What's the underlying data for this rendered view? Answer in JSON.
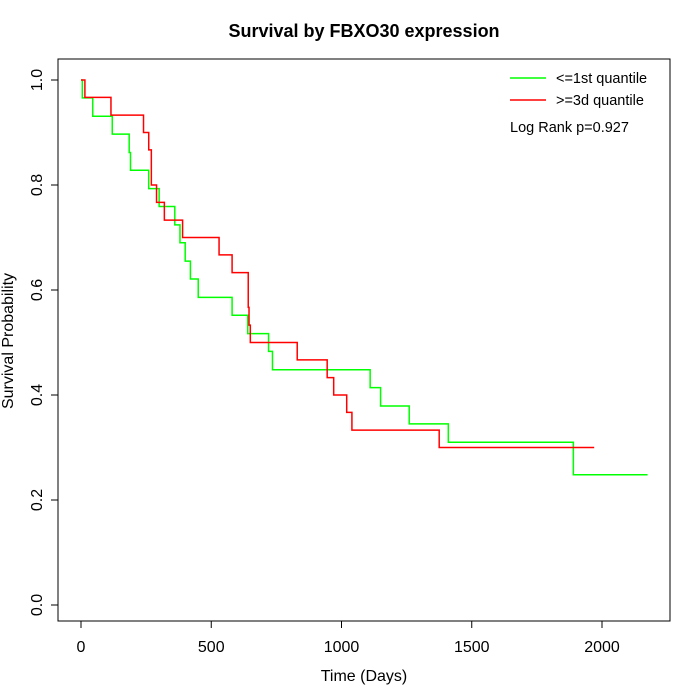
{
  "chart_data": {
    "type": "line",
    "title": "Survival by FBXO30 expression",
    "xlabel": "Time (Days)",
    "ylabel": "Survival Probability",
    "xlim": [
      0,
      2175
    ],
    "ylim": [
      0,
      1.0
    ],
    "x_ticks": [
      0,
      500,
      1000,
      1500,
      2000
    ],
    "y_ticks": [
      0.0,
      0.2,
      0.4,
      0.6,
      0.8,
      1.0
    ],
    "x_tick_labels": [
      "0",
      "500",
      "1000",
      "1500",
      "2000"
    ],
    "y_tick_labels": [
      "0.0",
      "0.2",
      "0.4",
      "0.6",
      "0.8",
      "1.0"
    ],
    "grid": false,
    "legend_position": "top-right",
    "annotation": "Log Rank p=0.927",
    "series": [
      {
        "name": "<=1st quantile",
        "color": "#00ff00",
        "step": true,
        "x": [
          0,
          5,
          45,
          120,
          185,
          190,
          260,
          300,
          360,
          380,
          400,
          420,
          450,
          580,
          640,
          660,
          720,
          735,
          1110,
          1150,
          1260,
          1410,
          1890,
          2175
        ],
        "y": [
          1.0,
          0.966,
          0.931,
          0.897,
          0.862,
          0.828,
          0.793,
          0.759,
          0.724,
          0.69,
          0.655,
          0.621,
          0.586,
          0.552,
          0.517,
          0.517,
          0.483,
          0.448,
          0.414,
          0.379,
          0.345,
          0.31,
          0.248,
          0.248
        ]
      },
      {
        "name": ">=3d quantile",
        "color": "#ff0000",
        "step": true,
        "x": [
          0,
          15,
          115,
          240,
          260,
          270,
          290,
          320,
          390,
          530,
          580,
          642,
          645,
          650,
          830,
          945,
          970,
          1020,
          1040,
          1375,
          1970
        ],
        "y": [
          1.0,
          0.967,
          0.933,
          0.9,
          0.867,
          0.8,
          0.767,
          0.733,
          0.7,
          0.667,
          0.633,
          0.567,
          0.533,
          0.5,
          0.467,
          0.433,
          0.4,
          0.367,
          0.333,
          0.3,
          0.3
        ]
      }
    ]
  }
}
